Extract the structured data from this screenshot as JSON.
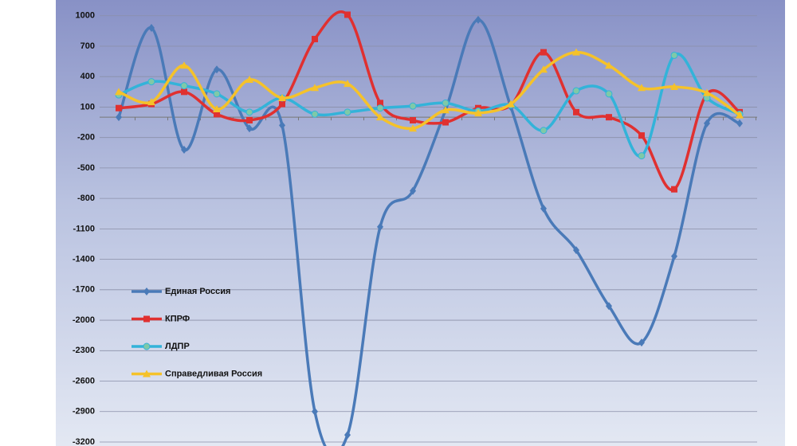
{
  "chart_data": {
    "type": "line",
    "smooth": true,
    "legend": "lower left",
    "grid": true,
    "categories": [
      null,
      null,
      null,
      null,
      null,
      null,
      null,
      null,
      null,
      null,
      null,
      null,
      null,
      null,
      null,
      null,
      null,
      null,
      null,
      null
    ],
    "ylim": [
      -3200,
      1100
    ],
    "yticks": [
      1000,
      700,
      400,
      100,
      -200,
      -500,
      -800,
      -1100,
      -1400,
      -1700,
      -2000,
      -2300,
      -2600,
      -2900,
      -3200
    ],
    "series": [
      {
        "name": "Единая Россия",
        "color": "#4a7ab8",
        "marker": "diamond",
        "values": [
          0,
          880,
          -320,
          470,
          -110,
          -80,
          -2900,
          -3130,
          -1080,
          -725,
          70,
          960,
          100,
          -900,
          -1310,
          -1860,
          -2220,
          -1370,
          -60,
          -60
        ]
      },
      {
        "name": "КПРФ",
        "color": "#e03030",
        "marker": "square",
        "values": [
          90,
          130,
          250,
          30,
          -30,
          130,
          770,
          1010,
          140,
          -30,
          -50,
          90,
          120,
          640,
          50,
          0,
          -180,
          -710,
          230,
          50
        ]
      },
      {
        "name": "ЛДПР",
        "color": "#33b3d9",
        "marker": "circle",
        "values": [
          220,
          350,
          310,
          230,
          50,
          190,
          30,
          50,
          90,
          110,
          140,
          60,
          120,
          -130,
          260,
          230,
          -380,
          610,
          190,
          30
        ]
      },
      {
        "name": "Справедливая Россия",
        "color": "#f5c22a",
        "marker": "triangle",
        "values": [
          250,
          150,
          510,
          80,
          370,
          190,
          290,
          330,
          0,
          -110,
          70,
          40,
          130,
          470,
          640,
          510,
          290,
          300,
          240,
          20
        ]
      }
    ]
  }
}
